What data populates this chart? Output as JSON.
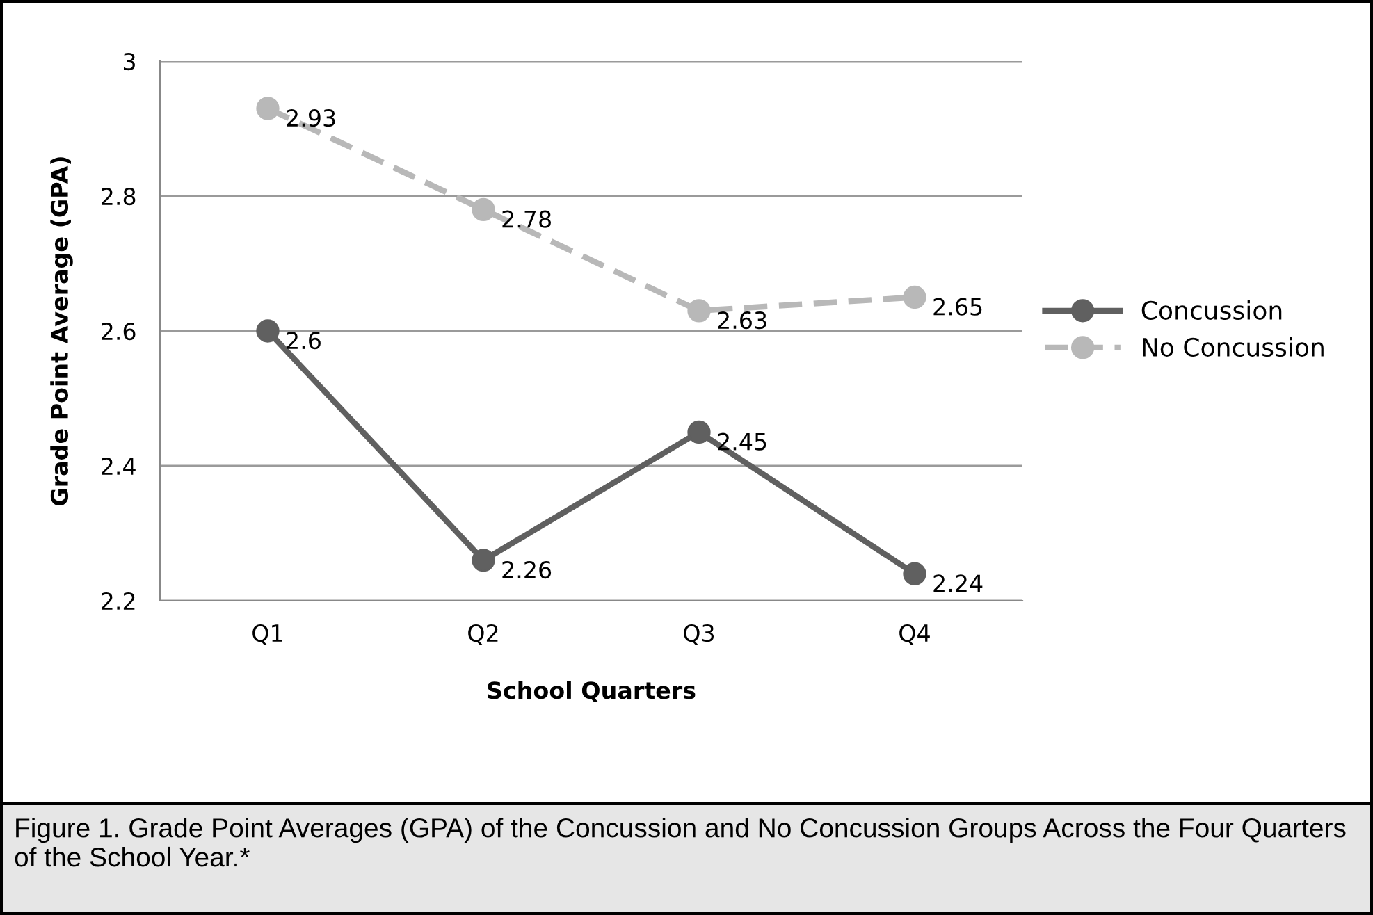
{
  "chart_data": {
    "type": "line",
    "xlabel": "School Quarters",
    "ylabel": "Grade Point Average (GPA)",
    "categories": [
      "Q1",
      "Q2",
      "Q3",
      "Q4"
    ],
    "series": [
      {
        "name": "Concussion",
        "color": "#606060",
        "line_style": "solid",
        "values": [
          2.6,
          2.26,
          2.45,
          2.24
        ]
      },
      {
        "name": "No Concussion",
        "color": "#b8b8b8",
        "line_style": "dashed",
        "values": [
          2.93,
          2.78,
          2.63,
          2.65
        ]
      }
    ],
    "ylim": [
      2.2,
      3
    ],
    "yticks": [
      2.2,
      2.4,
      2.6,
      2.8,
      3
    ],
    "grid": "y",
    "legend": "right",
    "marker": "circle",
    "data_labels": true,
    "annotations": [
      "Figure 1. Grade Point Averages (GPA) of the Concussion and No Concussion Groups Across the Four Quarters of the School Year.*"
    ]
  }
}
